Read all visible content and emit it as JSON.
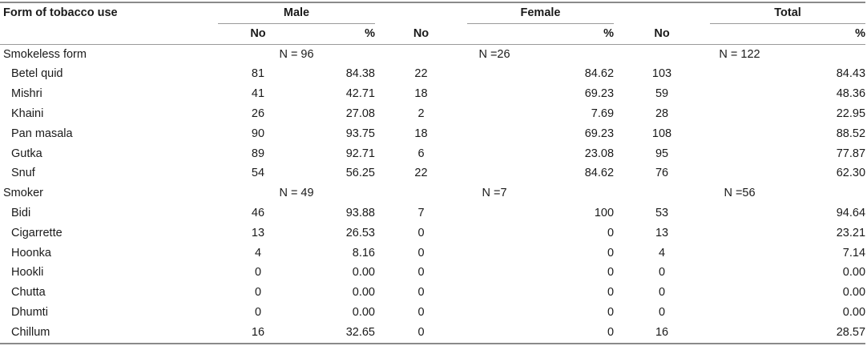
{
  "header": {
    "first_col": "Form of tobacco use",
    "groups": [
      "Male",
      "Female",
      "Total"
    ],
    "sub": [
      "No",
      "%"
    ]
  },
  "sections": [
    {
      "label": "Smokeless form",
      "n": [
        "N = 96",
        "N =26",
        "N = 122"
      ],
      "rows": [
        {
          "name": "Betel quid",
          "vals": [
            "81",
            "84.38",
            "22",
            "84.62",
            "103",
            "84.43"
          ]
        },
        {
          "name": "Mishri",
          "vals": [
            "41",
            "42.71",
            "18",
            "69.23",
            "59",
            "48.36"
          ]
        },
        {
          "name": "Khaini",
          "vals": [
            "26",
            "27.08",
            "2",
            "7.69",
            "28",
            "22.95"
          ]
        },
        {
          "name": "Pan masala",
          "vals": [
            "90",
            "93.75",
            "18",
            "69.23",
            "108",
            "88.52"
          ]
        },
        {
          "name": "Gutka",
          "vals": [
            "89",
            "92.71",
            "6",
            "23.08",
            "95",
            "77.87"
          ]
        },
        {
          "name": "Snuf",
          "vals": [
            "54",
            "56.25",
            "22",
            "84.62",
            "76",
            "62.30"
          ]
        }
      ]
    },
    {
      "label": "Smoker",
      "n": [
        "N = 49",
        "N =7",
        "N =56"
      ],
      "rows": [
        {
          "name": "Bidi",
          "vals": [
            "46",
            "93.88",
            "7",
            "100",
            "53",
            "94.64"
          ]
        },
        {
          "name": "Cigarrette",
          "vals": [
            "13",
            "26.53",
            "0",
            "0",
            "13",
            "23.21"
          ]
        },
        {
          "name": "Hoonka",
          "vals": [
            "4",
            "8.16",
            "0",
            "0",
            "4",
            "7.14"
          ]
        },
        {
          "name": "Hookli",
          "vals": [
            "0",
            "0.00",
            "0",
            "0",
            "0",
            "0.00"
          ]
        },
        {
          "name": "Chutta",
          "vals": [
            "0",
            "0.00",
            "0",
            "0",
            "0",
            "0.00"
          ]
        },
        {
          "name": "Dhumti",
          "vals": [
            "0",
            "0.00",
            "0",
            "0",
            "0",
            "0.00"
          ]
        },
        {
          "name": "Chillum",
          "vals": [
            "16",
            "32.65",
            "0",
            "0",
            "16",
            "28.57"
          ]
        }
      ]
    }
  ]
}
